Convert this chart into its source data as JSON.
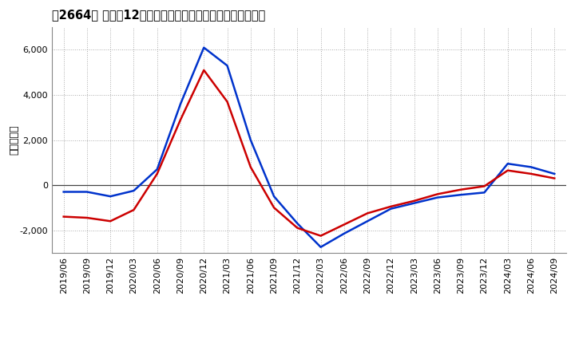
{
  "title": "［2664］ 利益だ12か月移動合計の対前年同期増減額の推移",
  "ylabel": "（百万円）",
  "ylim": [
    -3000,
    7000
  ],
  "yticks": [
    -2000,
    0,
    2000,
    4000,
    6000
  ],
  "bg_color": "#ffffff",
  "grid_color": "#aaaaaa",
  "line_color_1": "#0033cc",
  "line_color_2": "#cc0000",
  "dates": [
    "2019/06",
    "2019/09",
    "2019/12",
    "2020/03",
    "2020/06",
    "2020/09",
    "2020/12",
    "2021/03",
    "2021/06",
    "2021/09",
    "2021/12",
    "2022/03",
    "2022/06",
    "2022/09",
    "2022/12",
    "2023/03",
    "2023/06",
    "2023/09",
    "2023/12",
    "2024/03",
    "2024/06",
    "2024/09"
  ],
  "series1": [
    -300,
    -300,
    -500,
    -250,
    700,
    3600,
    6100,
    5300,
    2000,
    -500,
    -1700,
    -2750,
    -2150,
    -1600,
    -1050,
    -800,
    -550,
    -430,
    -330,
    950,
    800,
    500
  ],
  "series2": [
    -1400,
    -1450,
    -1600,
    -1100,
    500,
    2900,
    5100,
    3700,
    800,
    -1000,
    -1900,
    -2250,
    -1750,
    -1250,
    -950,
    -700,
    -400,
    -200,
    -50,
    650,
    500,
    300
  ]
}
